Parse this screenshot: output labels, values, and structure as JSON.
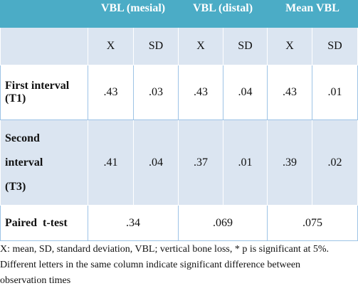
{
  "table": {
    "header": [
      "VBL (mesial)",
      "VBL (distal)",
      "Mean VBL"
    ],
    "subheader": [
      "X",
      "SD",
      "X",
      "SD",
      "X",
      "SD"
    ],
    "rows": [
      {
        "label": "First interval (T1)",
        "cells": [
          ".43",
          ".03",
          ".43",
          ".04",
          ".43",
          ".01"
        ]
      },
      {
        "label": "Second interval (T3)",
        "cells": [
          ".41",
          ".04",
          ".37",
          ".01",
          ".39",
          ".02"
        ]
      }
    ],
    "ttest": {
      "label": "Paired  t-test",
      "cells": [
        ".34",
        ".069",
        ".075"
      ]
    }
  },
  "notes": [
    "X: mean, SD, standard deviation, VBL; vertical bone loss, * p is significant at 5%.",
    "Different letters in the same column indicate significant difference between observation times"
  ]
}
